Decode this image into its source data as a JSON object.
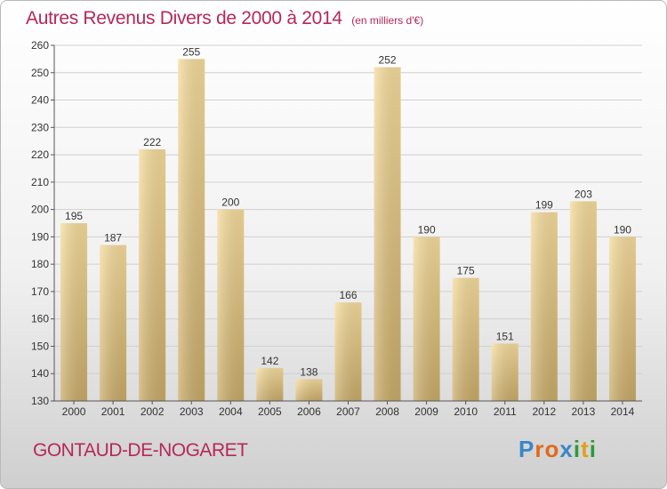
{
  "header": {
    "title": "Autres Revenus Divers de 2000 à 2014",
    "subtitle": "(en milliers d'€)"
  },
  "footer": {
    "town": "GONTAUD-DE-NOGARET",
    "logo_text": "Proxiti",
    "logo_colors": [
      "#3a86c8",
      "#e06a1c",
      "#e06a1c",
      "#3a86c8",
      "#2e9a3a",
      "#e0a01c",
      "#2e9a3a"
    ]
  },
  "colors": {
    "bar_light": "#f6dc9c",
    "bar_dark": "#c9ab68",
    "grid": "#d0d0d0",
    "axis": "#555555",
    "text": "#333333"
  },
  "chart_data": {
    "type": "bar",
    "title": "Autres Revenus Divers de 2000 à 2014",
    "subtitle": "(en milliers d'€)",
    "categories": [
      "2000",
      "2001",
      "2002",
      "2003",
      "2004",
      "2005",
      "2006",
      "2007",
      "2008",
      "2009",
      "2010",
      "2011",
      "2012",
      "2013",
      "2014"
    ],
    "values": [
      195,
      187,
      222,
      255,
      200,
      142,
      138,
      166,
      252,
      190,
      175,
      151,
      199,
      203,
      190
    ],
    "ylim": [
      130,
      260
    ],
    "yticks": [
      130,
      140,
      150,
      160,
      170,
      180,
      190,
      200,
      210,
      220,
      230,
      240,
      250,
      260
    ],
    "grid": true,
    "data_labels": true
  }
}
